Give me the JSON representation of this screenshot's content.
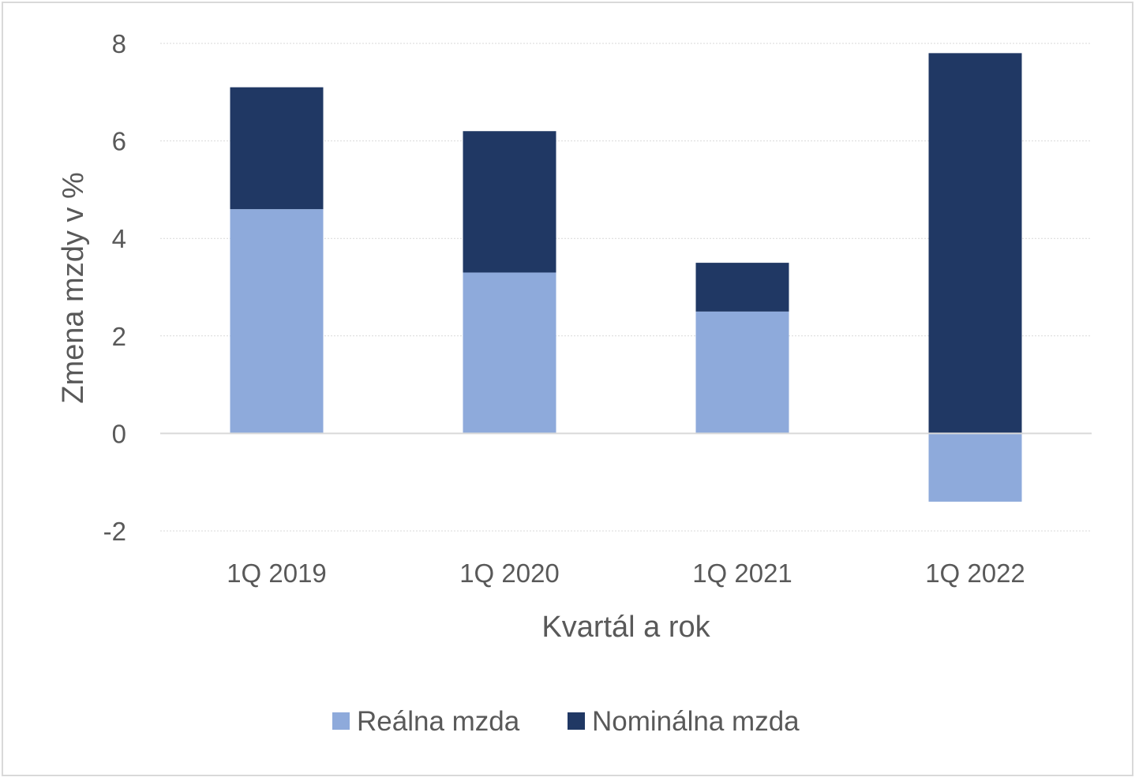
{
  "chart_data": {
    "type": "bar",
    "stacked": true,
    "title": "",
    "xlabel": "Kvartál a rok",
    "ylabel": "Zmena mzdy v %",
    "categories": [
      "1Q 2019",
      "1Q 2020",
      "1Q 2021",
      "1Q 2022"
    ],
    "series": [
      {
        "name": "Reálna mzda",
        "values": [
          4.6,
          3.3,
          2.5,
          -1.4
        ],
        "color": "#8eaadb"
      },
      {
        "name": "Nominálna mzda",
        "values": [
          2.5,
          2.9,
          1.0,
          7.8
        ],
        "color": "#203864"
      }
    ],
    "ylim": [
      -2,
      8
    ],
    "yticks": [
      "-2",
      "0",
      "2",
      "4",
      "6",
      "8"
    ],
    "grid": true,
    "legend_position": "bottom"
  }
}
